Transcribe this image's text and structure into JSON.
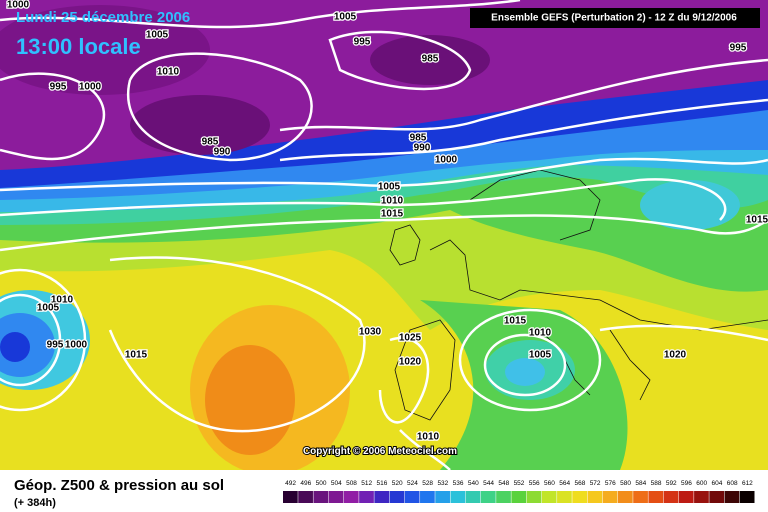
{
  "header": {
    "date": "Lundi 25 décembre 2006",
    "time": "13:00 locale",
    "model": "Ensemble GEFS (Perturbation 2)  - 12 Z du 9/12/2006"
  },
  "isobar_labels": [
    "1000",
    "1005",
    "1005",
    "995",
    "985",
    "995",
    "1010",
    "995",
    "1000",
    "985",
    "990",
    "985",
    "990",
    "1000",
    "1005",
    "1010",
    "1015",
    "1015",
    "1010",
    "1005",
    "995",
    "1000",
    "1015",
    "1030",
    "1025",
    "1015",
    "1010",
    "1020",
    "1005",
    "1020",
    "1010"
  ],
  "footer": {
    "copyright": "Copyright © 2006 Meteociel.com",
    "title": "Géop. Z500 & pression au sol",
    "lead_time": "(+ 384h)"
  },
  "colorbar": {
    "labels": [
      "492",
      "496",
      "500",
      "504",
      "508",
      "512",
      "516",
      "520",
      "524",
      "528",
      "532",
      "536",
      "540",
      "544",
      "548",
      "552",
      "556",
      "560",
      "564",
      "568",
      "572",
      "576",
      "580",
      "584",
      "588",
      "592",
      "596",
      "600",
      "604",
      "608",
      "612"
    ]
  }
}
